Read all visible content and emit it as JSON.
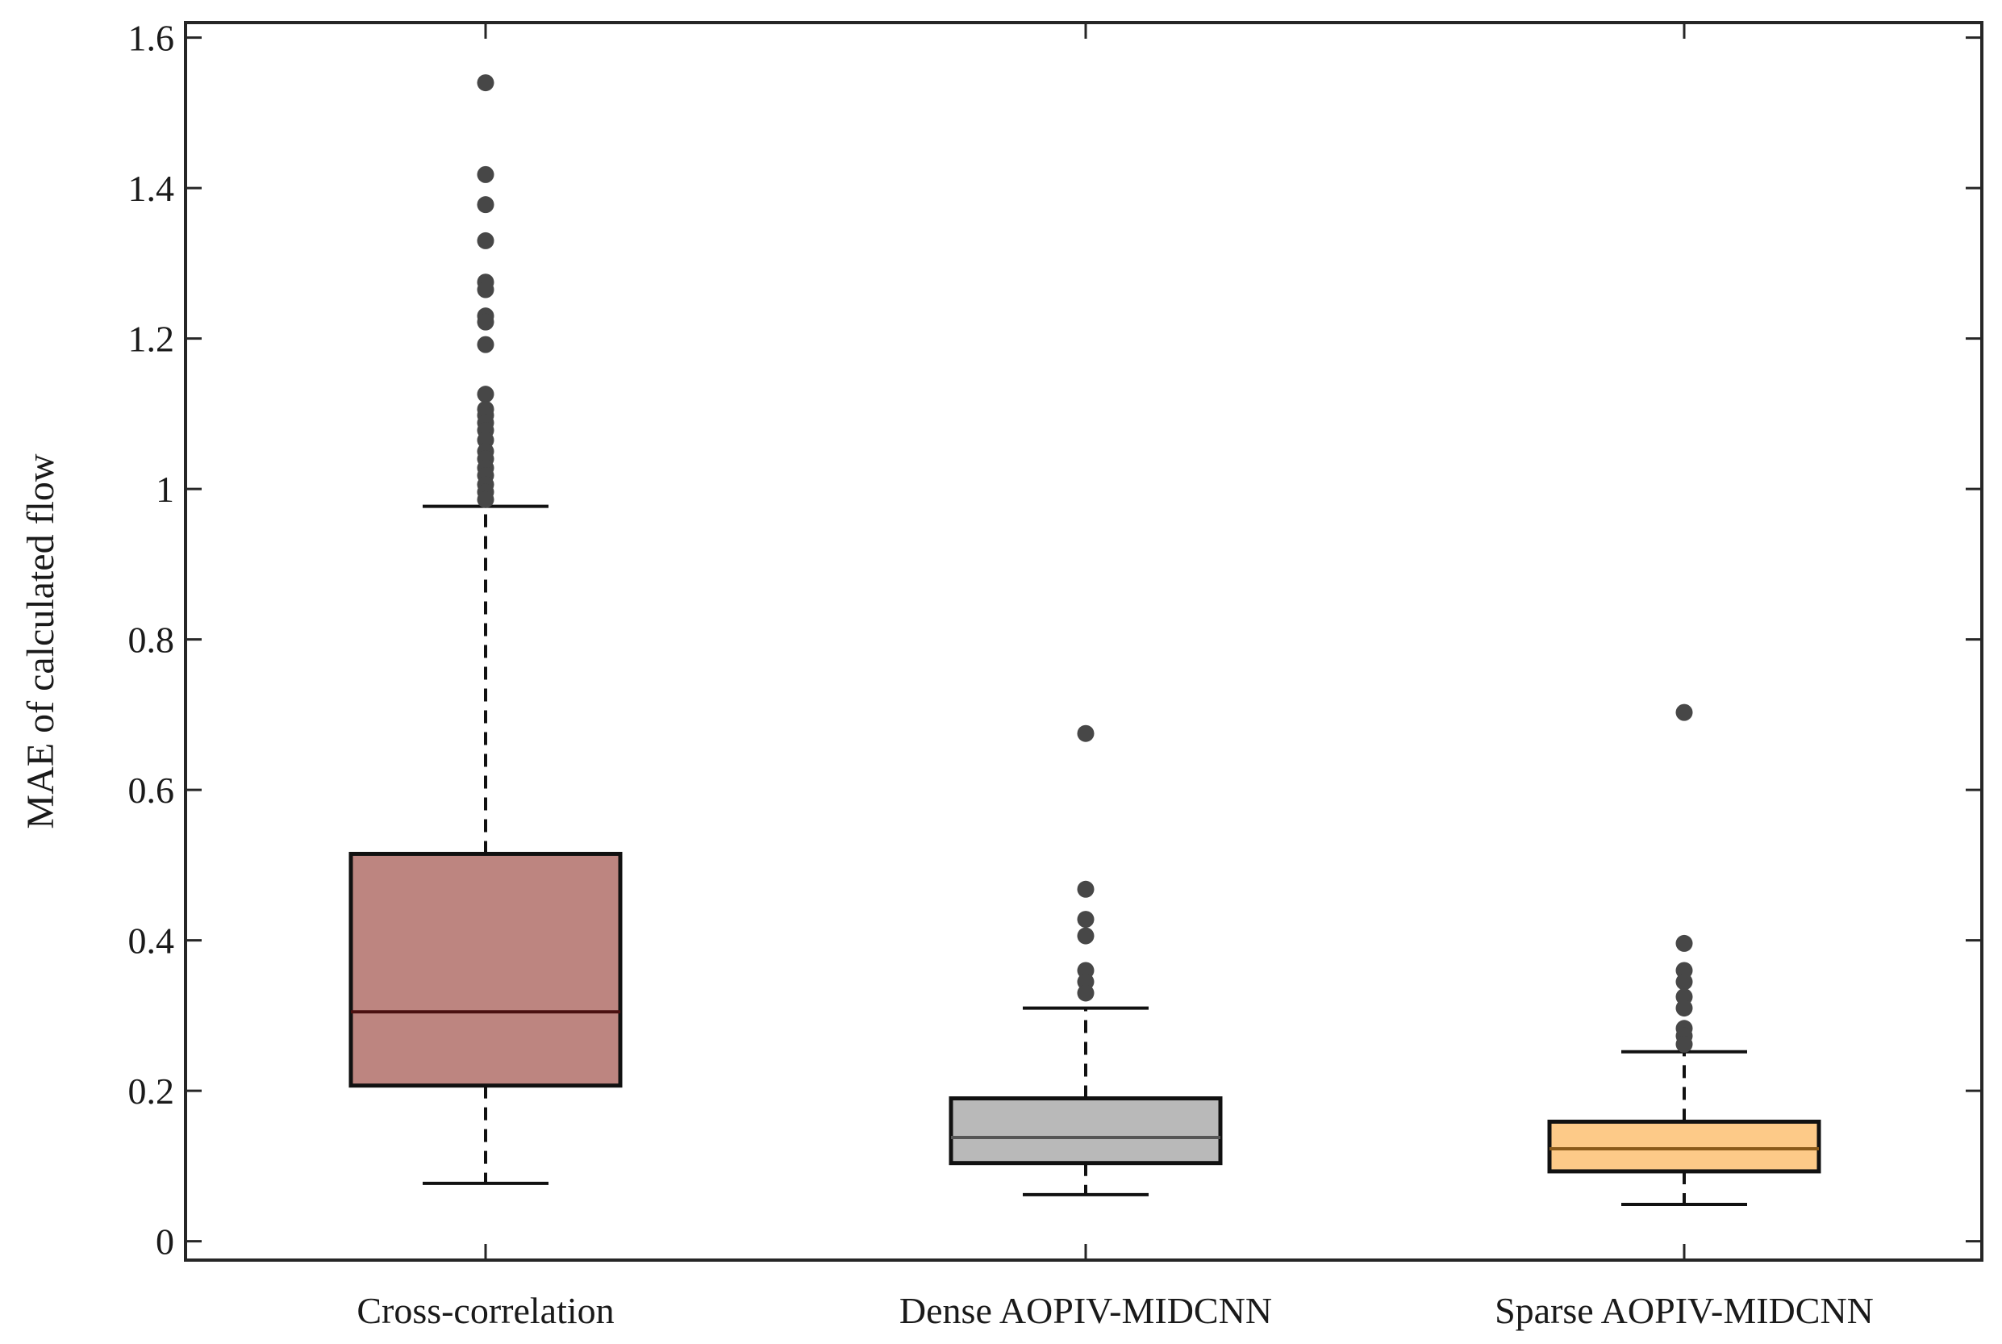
{
  "chart_data": {
    "type": "box",
    "title": "",
    "xlabel": "",
    "ylabel": "MAE of calculated flow",
    "ylim": [
      -0.025,
      1.62
    ],
    "yticks": [
      0,
      0.2,
      0.4,
      0.6,
      0.8,
      1,
      1.2,
      1.4,
      1.6
    ],
    "ytick_labels": [
      "0",
      "0.2",
      "0.4",
      "0.6",
      "0.8",
      "1",
      "1.2",
      "1.4",
      "1.6"
    ],
    "grid": false,
    "legend": "none",
    "categories": [
      "Cross-correlation",
      "Dense AOPIV-MIDCNN",
      "Sparse AOPIV-MIDCNN"
    ],
    "boxes": [
      {
        "name": "Cross-correlation",
        "whisker_low": 0.077,
        "q1": 0.207,
        "median": 0.305,
        "q3": 0.515,
        "whisker_high": 0.977,
        "fill": "#bd8580",
        "median_color": "#4a1010",
        "outliers": [
          1.54,
          1.418,
          1.378,
          1.33,
          1.275,
          1.265,
          1.23,
          1.222,
          1.192,
          1.126,
          1.106,
          1.098,
          1.088,
          1.078,
          1.065,
          1.05,
          1.04,
          1.028,
          1.018,
          1.006,
          0.996,
          0.986
        ]
      },
      {
        "name": "Dense AOPIV-MIDCNN",
        "whisker_low": 0.062,
        "q1": 0.104,
        "median": 0.138,
        "q3": 0.19,
        "whisker_high": 0.31,
        "fill": "#b9b9b9",
        "median_color": "#555555",
        "outliers": [
          0.675,
          0.468,
          0.428,
          0.406,
          0.36,
          0.345,
          0.33
        ]
      },
      {
        "name": "Sparse AOPIV-MIDCNN",
        "whisker_low": 0.049,
        "q1": 0.093,
        "median": 0.123,
        "q3": 0.159,
        "whisker_high": 0.252,
        "fill": "#fdca88",
        "median_color": "#8a5a1a",
        "outliers": [
          0.703,
          0.396,
          0.36,
          0.345,
          0.325,
          0.31,
          0.283,
          0.273,
          0.262
        ]
      }
    ],
    "colors": {
      "axis": "#262626",
      "whisker": "#111111",
      "outlier": "#474747"
    }
  }
}
